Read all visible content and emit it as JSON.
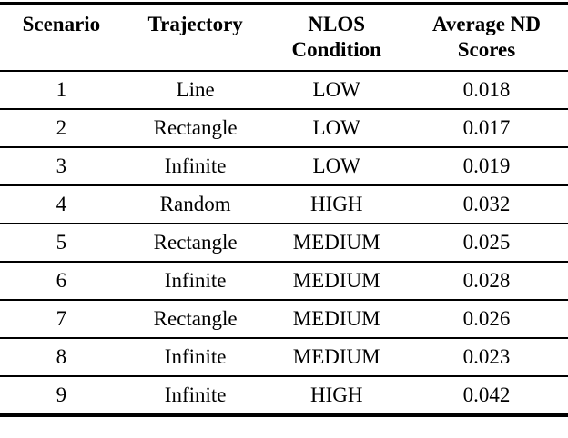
{
  "table": {
    "columns": [
      {
        "key": "scenario",
        "label": "Scenario"
      },
      {
        "key": "trajectory",
        "label": "Trajectory"
      },
      {
        "key": "nlos",
        "label": "NLOS\nCondition"
      },
      {
        "key": "score",
        "label": "Average ND\nScores"
      }
    ],
    "rows": [
      {
        "scenario": "1",
        "trajectory": "Line",
        "nlos": "LOW",
        "score": "0.018"
      },
      {
        "scenario": "2",
        "trajectory": "Rectangle",
        "nlos": "LOW",
        "score": "0.017"
      },
      {
        "scenario": "3",
        "trajectory": "Infinite",
        "nlos": "LOW",
        "score": "0.019"
      },
      {
        "scenario": "4",
        "trajectory": "Random",
        "nlos": "HIGH",
        "score": "0.032"
      },
      {
        "scenario": "5",
        "trajectory": "Rectangle",
        "nlos": "MEDIUM",
        "score": "0.025"
      },
      {
        "scenario": "6",
        "trajectory": "Infinite",
        "nlos": "MEDIUM",
        "score": "0.028"
      },
      {
        "scenario": "7",
        "trajectory": "Rectangle",
        "nlos": "MEDIUM",
        "score": "0.026"
      },
      {
        "scenario": "8",
        "trajectory": "Infinite",
        "nlos": "MEDIUM",
        "score": "0.023"
      },
      {
        "scenario": "9",
        "trajectory": "Infinite",
        "nlos": "HIGH",
        "score": "0.042"
      }
    ],
    "colors": {
      "rule": "#000000",
      "text": "#000000",
      "background": "#ffffff"
    }
  }
}
